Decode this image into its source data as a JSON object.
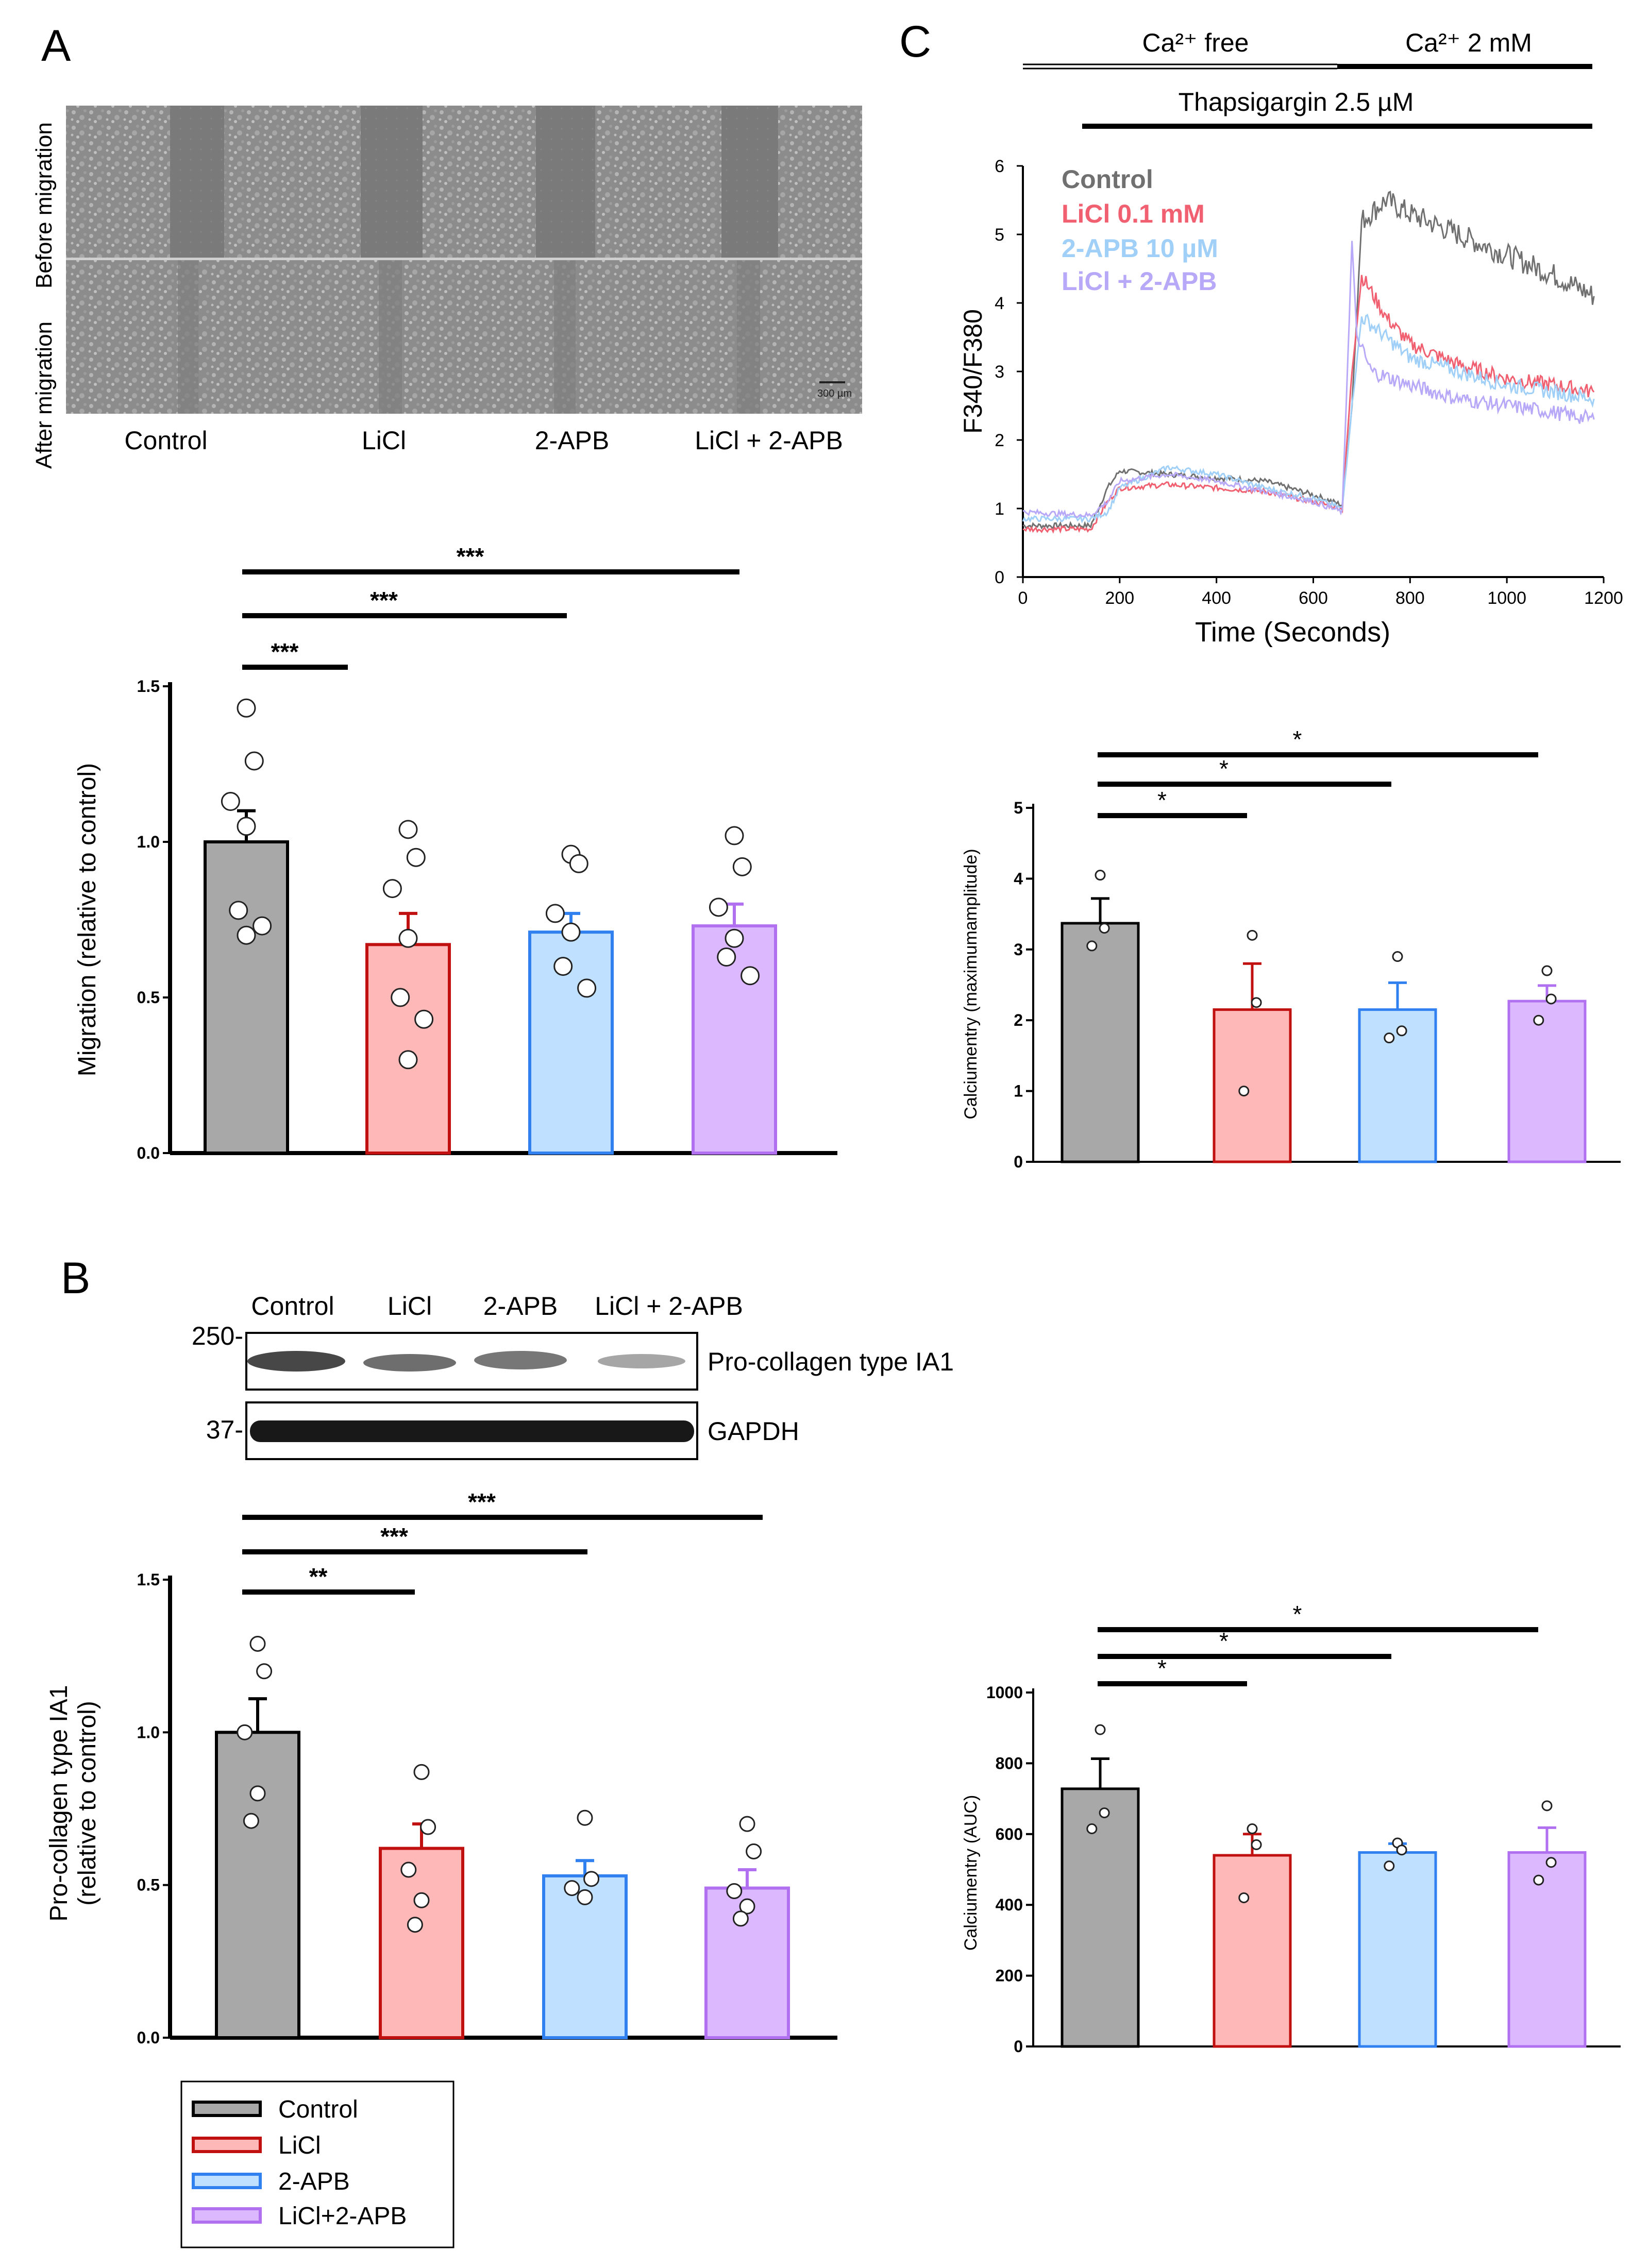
{
  "panels": {
    "a": "A",
    "b": "B",
    "c": "C"
  },
  "colors": {
    "control_fill": "#a8a8a8",
    "control_edge": "#000000",
    "licl_fill": "#ffb8b8",
    "licl_edge": "#c01010",
    "apb_fill": "#c0e0ff",
    "apb_edge": "#3080f0",
    "combo_fill": "#dcb8ff",
    "combo_edge": "#b070f0",
    "trace_control": "#707070",
    "trace_licl": "#f06070",
    "trace_apb": "#a0d0f8",
    "trace_combo": "#b8a8f8"
  },
  "micrograph": {
    "side_top": "Before migration",
    "side_bottom": "After migration",
    "scale_bar": "300 µm",
    "conditions": [
      "Control",
      "LiCl",
      "2-APB",
      "LiCl + 2-APB"
    ]
  },
  "blot": {
    "columns": [
      "Control",
      "LiCl",
      "2-APB",
      "LiCl + 2-APB"
    ],
    "markers": [
      "250-",
      "37-"
    ],
    "bands": [
      "Pro-collagen type IA1",
      "GAPDH"
    ]
  },
  "protocol": {
    "ca_free": "Ca²⁺ free",
    "ca_2mm": "Ca²⁺ 2 mM",
    "thapsigargin": "Thapsigargin 2.5 µM"
  },
  "legend": {
    "items": [
      {
        "label": "Control",
        "key": "control"
      },
      {
        "label": "LiCl",
        "key": "licl"
      },
      {
        "label": "2-APB",
        "key": "apb"
      },
      {
        "label": "LiCl+2-APB",
        "key": "combo"
      }
    ]
  },
  "chart_data": [
    {
      "id": "migration",
      "type": "bar",
      "title": "",
      "categories": [
        "Control",
        "LiCl",
        "2-APB",
        "LiCl + 2-APB"
      ],
      "values": [
        1.0,
        0.67,
        0.71,
        0.73
      ],
      "errors": [
        0.1,
        0.1,
        0.06,
        0.07
      ],
      "points": [
        [
          1.43,
          1.26,
          1.13,
          1.05,
          0.78,
          0.73,
          0.7
        ],
        [
          1.04,
          0.95,
          0.85,
          0.69,
          0.5,
          0.43,
          0.3
        ],
        [
          0.96,
          0.93,
          0.77,
          0.71,
          0.6,
          0.53
        ],
        [
          1.02,
          0.92,
          0.79,
          0.69,
          0.63,
          0.57
        ]
      ],
      "ylabel": "Migration (relative to control)",
      "ylim": [
        0,
        1.5
      ],
      "yticks": [
        "0.0",
        "0.5",
        "1.0",
        "1.5"
      ],
      "significance": [
        {
          "from": 0,
          "to": 1,
          "label": "***"
        },
        {
          "from": 0,
          "to": 2,
          "label": "***"
        },
        {
          "from": 0,
          "to": 3,
          "label": "***"
        }
      ]
    },
    {
      "id": "procollagen",
      "type": "bar",
      "title": "",
      "categories": [
        "Control",
        "LiCl",
        "2-APB",
        "LiCl + 2-APB"
      ],
      "values": [
        1.0,
        0.62,
        0.53,
        0.49
      ],
      "errors": [
        0.11,
        0.08,
        0.05,
        0.06
      ],
      "points": [
        [
          1.29,
          1.2,
          1.0,
          0.8,
          0.71
        ],
        [
          0.87,
          0.69,
          0.55,
          0.45,
          0.37
        ],
        [
          0.72,
          0.52,
          0.49,
          0.46
        ],
        [
          0.7,
          0.61,
          0.48,
          0.43,
          0.39
        ]
      ],
      "ylabel": "Pro-collagen type IA1 (relative to control)",
      "ylabel_lines": [
        "Pro-collagen type IA1",
        "(relative to control)"
      ],
      "ylim": [
        0,
        1.5
      ],
      "yticks": [
        "0.0",
        "0.5",
        "1.0",
        "1.5"
      ],
      "significance": [
        {
          "from": 0,
          "to": 1,
          "label": "**"
        },
        {
          "from": 0,
          "to": 2,
          "label": "***"
        },
        {
          "from": 0,
          "to": 3,
          "label": "***"
        }
      ]
    },
    {
      "id": "calcium_trace",
      "type": "line",
      "xlabel": "Time (Seconds)",
      "ylabel": "F340/F380",
      "xlim": [
        0,
        1200
      ],
      "ylim": [
        0,
        6
      ],
      "xticks": [
        "0",
        "200",
        "400",
        "600",
        "800",
        "1000",
        "1200"
      ],
      "yticks": [
        "0",
        "1",
        "2",
        "3",
        "4",
        "5",
        "6"
      ],
      "series": [
        {
          "name": "Control",
          "key": "control",
          "x": [
            0,
            140,
            175,
            200,
            300,
            400,
            500,
            600,
            660,
            680,
            700,
            750,
            800,
            900,
            1000,
            1100,
            1180
          ],
          "y": [
            0.75,
            0.75,
            1.3,
            1.55,
            1.5,
            1.45,
            1.4,
            1.2,
            1.05,
            2.5,
            5.2,
            5.5,
            5.3,
            5.0,
            4.7,
            4.4,
            4.1
          ]
        },
        {
          "name": "LiCl 0.1 mM",
          "key": "licl",
          "x": [
            0,
            140,
            175,
            200,
            300,
            400,
            500,
            600,
            660,
            680,
            700,
            750,
            800,
            900,
            1000,
            1100,
            1180
          ],
          "y": [
            0.7,
            0.7,
            1.1,
            1.3,
            1.35,
            1.3,
            1.25,
            1.1,
            1.0,
            3.0,
            4.4,
            3.8,
            3.4,
            3.1,
            2.9,
            2.8,
            2.7
          ]
        },
        {
          "name": "2-APB 10 µM",
          "key": "apb",
          "x": [
            0,
            140,
            175,
            200,
            300,
            400,
            500,
            600,
            660,
            680,
            700,
            750,
            800,
            900,
            1000,
            1100,
            1180
          ],
          "y": [
            0.85,
            0.85,
            0.95,
            1.3,
            1.6,
            1.5,
            1.3,
            1.15,
            1.0,
            2.5,
            3.8,
            3.5,
            3.2,
            3.0,
            2.8,
            2.7,
            2.6
          ]
        },
        {
          "name": "LiCl + 2-APB",
          "key": "combo",
          "x": [
            0,
            140,
            175,
            200,
            300,
            400,
            500,
            600,
            660,
            680,
            690,
            720,
            800,
            900,
            1000,
            1100,
            1180
          ],
          "y": [
            0.95,
            0.9,
            1.1,
            1.4,
            1.5,
            1.4,
            1.25,
            1.1,
            0.95,
            4.9,
            3.5,
            3.0,
            2.8,
            2.6,
            2.5,
            2.4,
            2.3
          ]
        }
      ]
    },
    {
      "id": "calcium_amplitude",
      "type": "bar",
      "categories": [
        "Control",
        "LiCl",
        "2-APB",
        "LiCl + 2-APB"
      ],
      "values": [
        3.37,
        2.15,
        2.15,
        2.27
      ],
      "errors": [
        0.35,
        0.65,
        0.38,
        0.22
      ],
      "points": [
        [
          4.05,
          3.3,
          3.05
        ],
        [
          3.2,
          2.25,
          1.0
        ],
        [
          2.9,
          1.85,
          1.75
        ],
        [
          2.7,
          2.3,
          2.0
        ]
      ],
      "ylabel": "Calciumentry (maximumamplitude)",
      "ylim": [
        0,
        5
      ],
      "yticks": [
        "0",
        "1",
        "2",
        "3",
        "4",
        "5"
      ],
      "significance": [
        {
          "from": 0,
          "to": 1,
          "label": "*"
        },
        {
          "from": 0,
          "to": 2,
          "label": "*"
        },
        {
          "from": 0,
          "to": 3,
          "label": "*"
        }
      ]
    },
    {
      "id": "calcium_auc",
      "type": "bar",
      "categories": [
        "Control",
        "LiCl",
        "2-APB",
        "LiCl + 2-APB"
      ],
      "values": [
        728,
        540,
        548,
        548
      ],
      "errors": [
        85,
        60,
        25,
        70
      ],
      "points": [
        [
          895,
          660,
          615
        ],
        [
          615,
          570,
          420
        ],
        [
          575,
          555,
          510
        ],
        [
          680,
          520,
          470
        ]
      ],
      "ylabel": "Calciumentry (AUC)",
      "ylim": [
        0,
        1000
      ],
      "yticks": [
        "0",
        "200",
        "400",
        "600",
        "800",
        "1000"
      ],
      "significance": [
        {
          "from": 0,
          "to": 1,
          "label": "*"
        },
        {
          "from": 0,
          "to": 2,
          "label": "*"
        },
        {
          "from": 0,
          "to": 3,
          "label": "*"
        }
      ]
    }
  ]
}
